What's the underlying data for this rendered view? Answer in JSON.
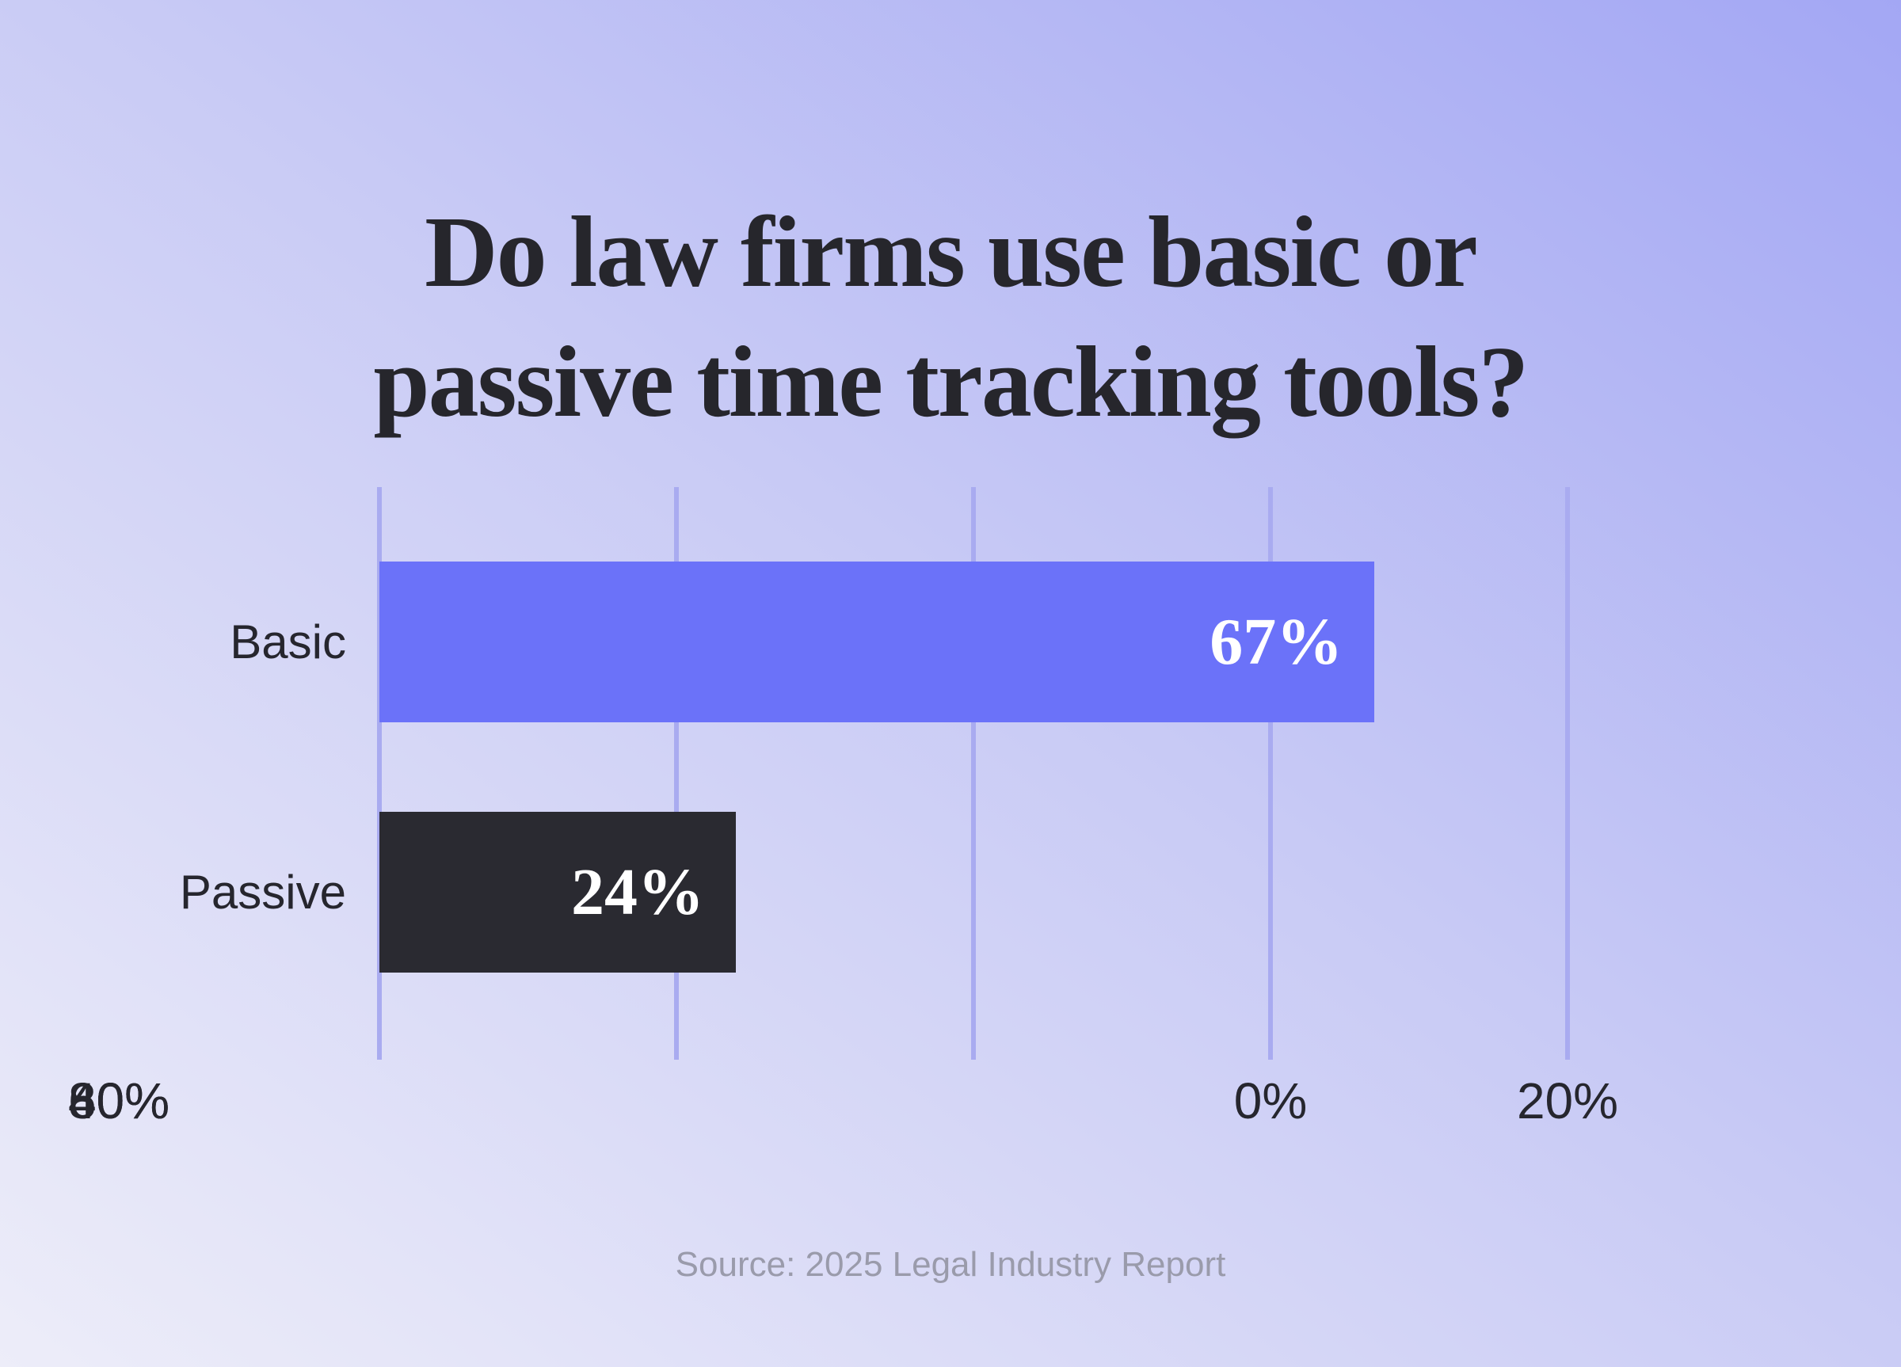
{
  "title": {
    "line1": "Do law firms use basic or",
    "line2": "passive time tracking tools?"
  },
  "source": "Source: 2025 Legal Industry Report",
  "chart_data": {
    "type": "bar",
    "orientation": "horizontal",
    "title": "Do law firms use basic or passive time tracking tools?",
    "categories": [
      "Basic",
      "Passive"
    ],
    "values": [
      67,
      24
    ],
    "display_values": [
      "67%",
      "24%"
    ],
    "x_ticks": [
      "0%",
      "20%",
      "40%",
      "60%",
      "80%"
    ],
    "xlim": [
      0,
      80
    ],
    "xlabel": "",
    "ylabel": "",
    "grid": true,
    "legend": false,
    "bar_colors": [
      "#6b72f9",
      "#2a2a31"
    ],
    "value_label_color": "#ffffff",
    "gridline_color": "#a9abf0",
    "title_color": "#26262c",
    "axis_label_color": "#26262e",
    "source_color": "#9a9bab",
    "background_gradient": [
      "#a3a7f4",
      "#c9cbf5",
      "#ededf9"
    ]
  }
}
